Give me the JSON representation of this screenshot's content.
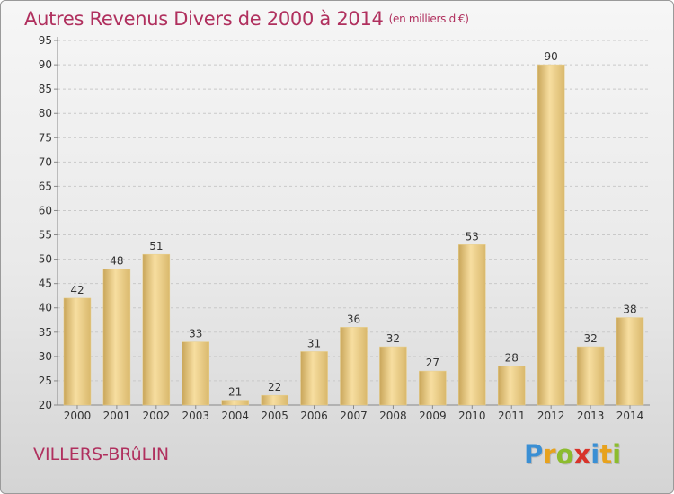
{
  "title": {
    "main": "Autres Revenus Divers de 2000 à 2014",
    "unit": "(en milliers d'€)"
  },
  "commune": "VILLERS-BRûLIN",
  "logo": {
    "letters": [
      "P",
      "r",
      "o",
      "x",
      "i",
      "t",
      "i"
    ],
    "colors": [
      "#3a8fd4",
      "#e7a21e",
      "#8cbc2e",
      "#d8332a",
      "#3a8fd4",
      "#e7a21e",
      "#8cbc2e"
    ]
  },
  "colors": {
    "title": "#b0305e",
    "bar_light": "#f7dea0",
    "bar_dark": "#c9a65a"
  },
  "chart_data": {
    "type": "bar",
    "categories": [
      "2000",
      "2001",
      "2002",
      "2003",
      "2004",
      "2005",
      "2006",
      "2007",
      "2008",
      "2009",
      "2010",
      "2011",
      "2012",
      "2013",
      "2014"
    ],
    "values": [
      42,
      48,
      51,
      33,
      21,
      22,
      31,
      36,
      32,
      27,
      53,
      28,
      90,
      32,
      38
    ],
    "ylim": [
      20,
      95
    ],
    "yticks": [
      20,
      25,
      30,
      35,
      40,
      45,
      50,
      55,
      60,
      65,
      70,
      75,
      80,
      85,
      90,
      95
    ],
    "grid": true,
    "data_labels": true
  }
}
